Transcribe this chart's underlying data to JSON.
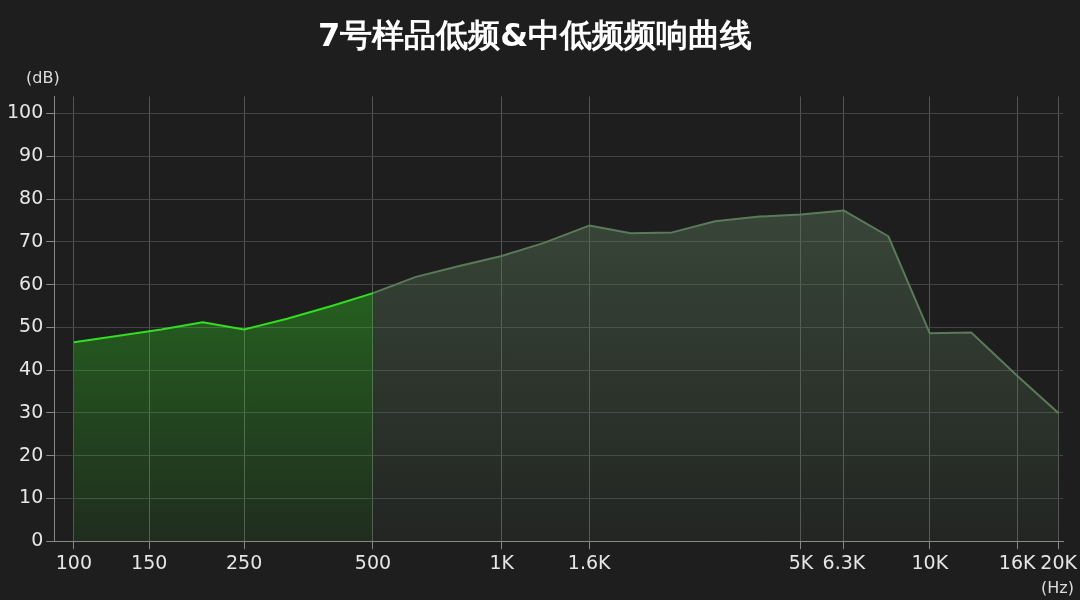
{
  "chart_data": {
    "type": "area",
    "title": "7号样品低频&中低频频响曲线",
    "xlabel": "(Hz)",
    "ylabel": "(dB)",
    "xlim": [
      90,
      20500
    ],
    "ylim": [
      0,
      104
    ],
    "xticks": [
      100,
      150,
      250,
      500,
      {
        "value": 1000,
        "label": "1K"
      },
      {
        "value": 1600,
        "label": "1.6K"
      },
      {
        "value": 5000,
        "label": "5K"
      },
      {
        "value": 6300,
        "label": "6.3K"
      },
      {
        "value": 10000,
        "label": "10K"
      },
      {
        "value": 16000,
        "label": "16K"
      },
      {
        "value": 20000,
        "label": "20K"
      }
    ],
    "yticks": [
      0,
      10,
      20,
      30,
      40,
      50,
      60,
      70,
      80,
      90,
      100
    ],
    "log": "x",
    "grid": true,
    "legend": false,
    "marker": "none",
    "line_style": "solid",
    "series": [
      {
        "color": "#33dd22",
        "x": [
          100,
          125,
          160,
          200,
          250,
          315,
          400,
          500
        ],
        "values": [
          46.5,
          47.9,
          49.5,
          51.2,
          49.5,
          52,
          55,
          58
        ]
      },
      {
        "color": "#5a7a5a",
        "x": [
          500,
          630,
          800,
          1000,
          1250,
          1600,
          2000,
          2500,
          3150,
          4000,
          5000,
          6300,
          8000,
          10000,
          12500,
          16000,
          20000
        ],
        "values": [
          58,
          61.8,
          64.4,
          66.7,
          69.7,
          73.8,
          72,
          72.2,
          74.8,
          75.9,
          76.4,
          77.3,
          71.3,
          48.6,
          48.8,
          38.7,
          29.9
        ]
      }
    ]
  }
}
